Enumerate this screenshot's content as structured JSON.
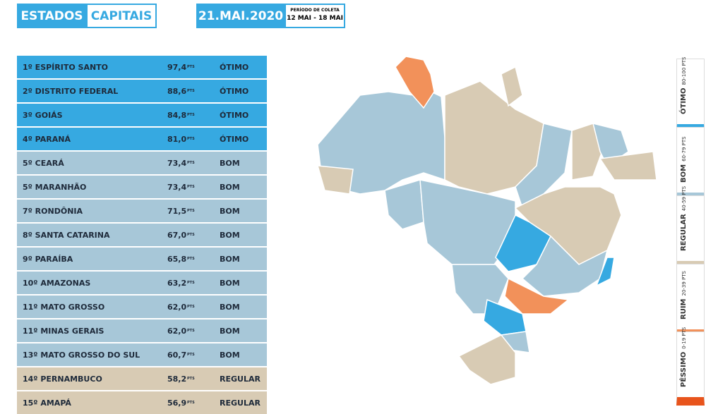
{
  "tabs": [
    "ESTADOS",
    "CAPITAIS"
  ],
  "date": "21.MAI.2020",
  "period": {
    "title": "PERÍODO DE COLETA",
    "range": "12 MAI - 18 MAI"
  },
  "table": {
    "unit": "PTS",
    "rows": [
      [
        "1º ESPÍRITO SANTO",
        "97,4",
        "ÓTIMO"
      ],
      [
        "2º DISTRITO FEDERAL",
        "88,6",
        "ÓTIMO"
      ],
      [
        "3º GOIÁS",
        "84,8",
        "ÓTIMO"
      ],
      [
        "4º PARANÁ",
        "81,0",
        "ÓTIMO"
      ],
      [
        "5º CEARÁ",
        "73,4",
        "BOM"
      ],
      [
        "5º MARANHÃO",
        "73,4",
        "BOM"
      ],
      [
        "7º RONDÔNIA",
        "71,5",
        "BOM"
      ],
      [
        "8º SANTA CATARINA",
        "67,0",
        "BOM"
      ],
      [
        "9º PARAÍBA",
        "65,8",
        "BOM"
      ],
      [
        "10º AMAZONAS",
        "63,2",
        "BOM"
      ],
      [
        "11º MATO GROSSO",
        "62,0",
        "BOM"
      ],
      [
        "11º MINAS GERAIS",
        "62,0",
        "BOM"
      ],
      [
        "13º MATO GROSSO DO SUL",
        "60,7",
        "BOM"
      ],
      [
        "14º PERNAMBUCO",
        "58,2",
        "REGULAR"
      ],
      [
        "15º AMAPÁ",
        "56,9",
        "REGULAR"
      ]
    ]
  },
  "legend": [
    {
      "label": "ÓTIMO",
      "range": "80-100 PTS",
      "color": "#36a9e1"
    },
    {
      "label": "BOM",
      "range": "60-79 PTS",
      "color": "#a7c7d8"
    },
    {
      "label": "REGULAR",
      "range": "40-59 PTS",
      "color": "#d8cbb4"
    },
    {
      "label": "RUIM",
      "range": "20-39 PTS",
      "color": "#f2915a"
    },
    {
      "label": "PÉSSIMO",
      "range": "0-19 PTS",
      "color": "#e8541c"
    }
  ]
}
